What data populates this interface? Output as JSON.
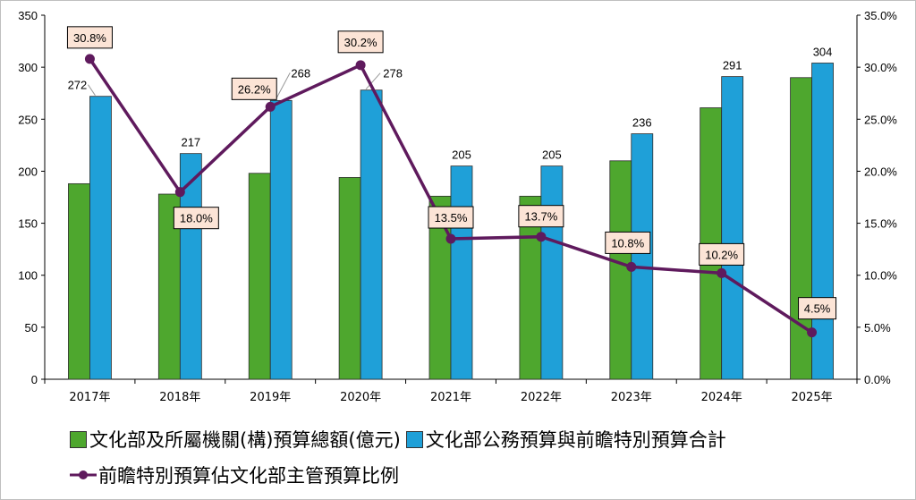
{
  "chart_data": {
    "type": "bar+line",
    "categories": [
      "2017年",
      "2018年",
      "2019年",
      "2020年",
      "2021年",
      "2022年",
      "2023年",
      "2024年",
      "2025年"
    ],
    "series": [
      {
        "name": "文化部及所屬機關(構)預算總額(億元)",
        "type": "bar",
        "axis": "left",
        "color": "#4ea72e",
        "values": [
          188,
          178,
          198,
          194,
          176,
          176,
          210,
          261,
          290
        ]
      },
      {
        "name": "文化部公務預算與前瞻特別預算合計",
        "type": "bar",
        "axis": "left",
        "color": "#1fa0d8",
        "values": [
          272,
          217,
          268,
          278,
          205,
          205,
          236,
          291,
          304
        ],
        "labels": [
          "272",
          "217",
          "268",
          "278",
          "205",
          "205",
          "236",
          "291",
          "304"
        ]
      },
      {
        "name": "前瞻特別預算佔文化部主管預算比例",
        "type": "line",
        "axis": "right",
        "color": "#5f1a5d",
        "values": [
          30.8,
          18.0,
          26.2,
          30.2,
          13.5,
          13.7,
          10.8,
          10.2,
          4.5
        ],
        "labels": [
          "30.8%",
          "18.0%",
          "26.2%",
          "30.2%",
          "13.5%",
          "13.7%",
          "10.8%",
          "10.2%",
          "4.5%"
        ]
      }
    ],
    "y_left": {
      "range": [
        0,
        350
      ],
      "ticks": [
        "0",
        "50",
        "100",
        "150",
        "200",
        "250",
        "300",
        "350"
      ]
    },
    "y_right": {
      "range": [
        0,
        35
      ],
      "ticks": [
        "0.0%",
        "5.0%",
        "10.0%",
        "15.0%",
        "20.0%",
        "25.0%",
        "30.0%",
        "35.0%"
      ]
    },
    "grid": false,
    "legend": "bottom",
    "label_fill": "#fce4d6"
  }
}
